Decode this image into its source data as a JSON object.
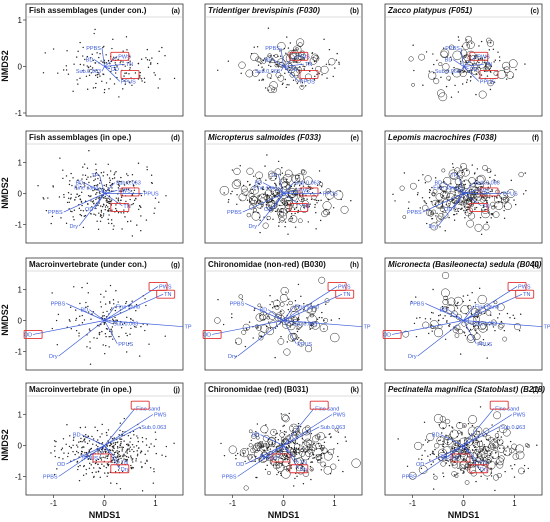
{
  "figure": {
    "axis_labels": {
      "x": "NMDS1",
      "y": "NMDS2"
    },
    "vector_color": "#3b5bdb",
    "highlight_color": "#e03131",
    "point_color": "#222222"
  },
  "chart_data": [
    {
      "id": "a",
      "type": "scatter",
      "title": "Fish assemblages (under con.)",
      "italic": false,
      "letter": "(a)",
      "xlim": [
        -1.5,
        1.5
      ],
      "ylim": [
        -1.0,
        1.0
      ],
      "xticks": [],
      "yticks": [
        -1,
        0,
        1
      ],
      "xlabel": "",
      "ylabel": "NMDS2",
      "circles": false,
      "seed": 11,
      "n_points": 160,
      "spread": [
        0.75,
        0.45
      ],
      "center": [
        0.1,
        0.0
      ],
      "vectors": [
        {
          "label": "PPBS",
          "x": -0.05,
          "y": 0.4
        },
        {
          "label": "BD",
          "x": -0.2,
          "y": 0.15
        },
        {
          "label": "PWS",
          "x": 0.25,
          "y": 0.22
        },
        {
          "label": "Sub.0.063",
          "x": -0.05,
          "y": -0.1
        },
        {
          "label": "OD",
          "x": 0.1,
          "y": -0.05
        },
        {
          "label": "TN",
          "x": 0.4,
          "y": 0.05
        },
        {
          "label": "PPUS",
          "x": 0.3,
          "y": -0.32
        }
      ],
      "boxes": [
        {
          "x": 0.3,
          "y": 0.22
        },
        {
          "x": 0.5,
          "y": -0.17
        }
      ]
    },
    {
      "id": "b",
      "type": "scatter",
      "title": "Tridentiger brevispinis (F030)",
      "italic": true,
      "letter": "(b)",
      "xlim": [
        -1.5,
        1.5
      ],
      "ylim": [
        -1.0,
        1.0
      ],
      "xticks": [],
      "yticks": [],
      "xlabel": "",
      "ylabel": "",
      "circles": true,
      "seed": 12,
      "n_points": 160,
      "spread": [
        0.75,
        0.45
      ],
      "center": [
        0.1,
        0.0
      ],
      "vectors": [
        {
          "label": "PPBS",
          "x": -0.05,
          "y": 0.4
        },
        {
          "label": "BD",
          "x": -0.2,
          "y": 0.15
        },
        {
          "label": "PWS",
          "x": 0.25,
          "y": 0.22
        },
        {
          "label": "Sub.0.063",
          "x": -0.05,
          "y": -0.1
        },
        {
          "label": "OD",
          "x": 0.1,
          "y": -0.05
        },
        {
          "label": "TN",
          "x": 0.4,
          "y": 0.05
        },
        {
          "label": "PPUS",
          "x": 0.3,
          "y": -0.32
        }
      ],
      "boxes": [
        {
          "x": 0.3,
          "y": 0.22
        },
        {
          "x": 0.5,
          "y": -0.17
        }
      ]
    },
    {
      "id": "c",
      "type": "scatter",
      "title": "Zacco platypus (F051)",
      "italic": true,
      "letter": "(c)",
      "xlim": [
        -1.5,
        1.5
      ],
      "ylim": [
        -1.0,
        1.0
      ],
      "xticks": [],
      "yticks": [],
      "xlabel": "",
      "ylabel": "",
      "circles": true,
      "seed": 13,
      "n_points": 160,
      "spread": [
        0.75,
        0.45
      ],
      "center": [
        0.1,
        0.0
      ],
      "vectors": [
        {
          "label": "PPBS",
          "x": -0.05,
          "y": 0.4
        },
        {
          "label": "BD",
          "x": -0.2,
          "y": 0.15
        },
        {
          "label": "PWS",
          "x": 0.25,
          "y": 0.22
        },
        {
          "label": "Sub.0.063",
          "x": -0.05,
          "y": -0.1
        },
        {
          "label": "OD",
          "x": 0.1,
          "y": -0.05
        },
        {
          "label": "TN",
          "x": 0.4,
          "y": 0.05
        },
        {
          "label": "PPUS",
          "x": 0.3,
          "y": -0.32
        }
      ],
      "boxes": [
        {
          "x": 0.3,
          "y": 0.22
        },
        {
          "x": 0.5,
          "y": -0.17
        }
      ]
    },
    {
      "id": "d",
      "type": "scatter",
      "title": "Fish assemblages (in ope.)",
      "italic": false,
      "letter": "(d)",
      "xlim": [
        -1.5,
        1.5
      ],
      "ylim": [
        -1.5,
        1.5
      ],
      "xticks": [],
      "yticks": [
        -1,
        0,
        1
      ],
      "xlabel": "",
      "ylabel": "NMDS2",
      "circles": false,
      "seed": 21,
      "n_points": 320,
      "spread": [
        0.8,
        0.75
      ],
      "center": [
        0.0,
        -0.1
      ],
      "vectors": [
        {
          "label": "PPBS",
          "x": -0.8,
          "y": -0.6
        },
        {
          "label": "Dry",
          "x": -0.5,
          "y": -1.05
        },
        {
          "label": "OD",
          "x": -0.2,
          "y": -0.5
        },
        {
          "label": "TP",
          "x": -0.1,
          "y": 0.6
        },
        {
          "label": "BD",
          "x": -0.4,
          "y": 0.35
        },
        {
          "label": "Fine sand",
          "x": -0.1,
          "y": 0.2
        },
        {
          "label": "Sub.0.063",
          "x": 0.2,
          "y": 0.35
        },
        {
          "label": "PWS",
          "x": 0.25,
          "y": 0.1
        },
        {
          "label": "PPUS",
          "x": 0.75,
          "y": 0.0
        },
        {
          "label": "TN",
          "x": 0.35,
          "y": -0.4
        }
      ],
      "boxes": [
        {
          "x": 0.5,
          "y": 0.05
        },
        {
          "x": 0.3,
          "y": -0.45
        }
      ]
    },
    {
      "id": "e",
      "type": "scatter",
      "title": "Micropterus salmoides (F033)",
      "italic": true,
      "letter": "(e)",
      "xlim": [
        -1.5,
        1.5
      ],
      "ylim": [
        -1.5,
        1.5
      ],
      "xticks": [],
      "yticks": [],
      "xlabel": "",
      "ylabel": "",
      "circles": true,
      "seed": 22,
      "n_points": 320,
      "spread": [
        0.8,
        0.75
      ],
      "center": [
        0.0,
        -0.1
      ],
      "vectors": [
        {
          "label": "PPBS",
          "x": -0.8,
          "y": -0.6
        },
        {
          "label": "Dry",
          "x": -0.5,
          "y": -1.05
        },
        {
          "label": "OD",
          "x": -0.2,
          "y": -0.5
        },
        {
          "label": "TP",
          "x": -0.1,
          "y": 0.6
        },
        {
          "label": "BD",
          "x": -0.4,
          "y": 0.35
        },
        {
          "label": "Fine sand",
          "x": -0.1,
          "y": 0.2
        },
        {
          "label": "Sub.0.063",
          "x": 0.2,
          "y": 0.35
        },
        {
          "label": "PWS",
          "x": 0.25,
          "y": 0.1
        },
        {
          "label": "PPUS",
          "x": 0.75,
          "y": 0.0
        },
        {
          "label": "TN",
          "x": 0.35,
          "y": -0.4
        }
      ],
      "boxes": [
        {
          "x": 0.5,
          "y": 0.05
        },
        {
          "x": 0.3,
          "y": -0.45
        }
      ]
    },
    {
      "id": "f",
      "type": "scatter",
      "title": "Lepomis macrochires (F038)",
      "italic": true,
      "letter": "(f)",
      "xlim": [
        -1.5,
        1.5
      ],
      "ylim": [
        -1.5,
        1.5
      ],
      "xticks": [],
      "yticks": [],
      "xlabel": "",
      "ylabel": "",
      "circles": true,
      "seed": 23,
      "n_points": 320,
      "spread": [
        0.8,
        0.75
      ],
      "center": [
        0.0,
        -0.1
      ],
      "vectors": [
        {
          "label": "PPBS",
          "x": -0.8,
          "y": -0.6
        },
        {
          "label": "Dry",
          "x": -0.5,
          "y": -1.05
        },
        {
          "label": "OD",
          "x": -0.2,
          "y": -0.5
        },
        {
          "label": "TP",
          "x": -0.1,
          "y": 0.6
        },
        {
          "label": "BD",
          "x": -0.4,
          "y": 0.35
        },
        {
          "label": "Fine sand",
          "x": -0.1,
          "y": 0.2
        },
        {
          "label": "Sub.0.063",
          "x": 0.2,
          "y": 0.35
        },
        {
          "label": "PWS",
          "x": 0.25,
          "y": 0.1
        },
        {
          "label": "PPUS",
          "x": 0.75,
          "y": 0.0
        },
        {
          "label": "TN",
          "x": 0.35,
          "y": -0.4
        }
      ],
      "boxes": [
        {
          "x": 0.5,
          "y": 0.05
        },
        {
          "x": 0.3,
          "y": -0.45
        }
      ]
    },
    {
      "id": "g",
      "type": "scatter",
      "title": "Macroinvertebrate (under con.)",
      "italic": false,
      "letter": "(g)",
      "xlim": [
        -1.5,
        1.5
      ],
      "ylim": [
        -1.5,
        1.5
      ],
      "xticks": [],
      "yticks": [
        -1,
        0,
        1
      ],
      "xlabel": "",
      "ylabel": "NMDS2",
      "circles": false,
      "seed": 31,
      "n_points": 150,
      "spread": [
        0.8,
        0.75
      ],
      "center": [
        0.0,
        0.0
      ],
      "vectors": [
        {
          "label": "PPBS",
          "x": -0.75,
          "y": 0.55
        },
        {
          "label": "BD",
          "x": -0.3,
          "y": 0.35
        },
        {
          "label": "Fine sand",
          "x": 0.2,
          "y": 0.45
        },
        {
          "label": "Sub.0.063",
          "x": 0.15,
          "y": -0.1
        },
        {
          "label": "PPUS",
          "x": 0.25,
          "y": -0.75
        },
        {
          "label": "Dry",
          "x": -0.9,
          "y": -1.15
        },
        {
          "label": "OD",
          "x": -1.4,
          "y": -0.45
        },
        {
          "label": "PWS",
          "x": 1.05,
          "y": 1.1
        },
        {
          "label": "TN",
          "x": 1.15,
          "y": 0.85
        },
        {
          "label": "TP",
          "x": 1.55,
          "y": -0.2
        }
      ],
      "boxes": [
        {
          "x": 1.05,
          "y": 1.1
        },
        {
          "x": 1.2,
          "y": 0.85
        },
        {
          "x": -1.4,
          "y": -0.45
        }
      ]
    },
    {
      "id": "h",
      "type": "scatter",
      "title": "Chironomidae (non-red) (B030)",
      "italic": false,
      "letter": "(h)",
      "xlim": [
        -1.5,
        1.5
      ],
      "ylim": [
        -1.5,
        1.5
      ],
      "xticks": [],
      "yticks": [],
      "xlabel": "",
      "ylabel": "",
      "circles": true,
      "seed": 32,
      "n_points": 150,
      "spread": [
        0.8,
        0.75
      ],
      "center": [
        0.0,
        0.0
      ],
      "vectors": [
        {
          "label": "PPBS",
          "x": -0.75,
          "y": 0.55
        },
        {
          "label": "BD",
          "x": -0.3,
          "y": 0.35
        },
        {
          "label": "Fine sand",
          "x": 0.2,
          "y": 0.45
        },
        {
          "label": "Sub.0.063",
          "x": 0.15,
          "y": -0.1
        },
        {
          "label": "PPUS",
          "x": 0.25,
          "y": -0.75
        },
        {
          "label": "Dry",
          "x": -0.9,
          "y": -1.15
        },
        {
          "label": "OD",
          "x": -1.4,
          "y": -0.45
        },
        {
          "label": "PWS",
          "x": 1.05,
          "y": 1.1
        },
        {
          "label": "TN",
          "x": 1.15,
          "y": 0.85
        },
        {
          "label": "TP",
          "x": 1.55,
          "y": -0.2
        }
      ],
      "boxes": [
        {
          "x": 1.05,
          "y": 1.1
        },
        {
          "x": 1.2,
          "y": 0.85
        },
        {
          "x": -1.4,
          "y": -0.45
        }
      ]
    },
    {
      "id": "i",
      "type": "scatter",
      "title": "Micronecta (Basileonecta) sedula (B040)",
      "italic": true,
      "letter": "(i)",
      "xlim": [
        -1.5,
        1.5
      ],
      "ylim": [
        -1.5,
        1.5
      ],
      "xticks": [],
      "yticks": [],
      "xlabel": "",
      "ylabel": "",
      "circles": true,
      "seed": 33,
      "n_points": 150,
      "spread": [
        0.8,
        0.75
      ],
      "center": [
        0.0,
        0.0
      ],
      "vectors": [
        {
          "label": "PPBS",
          "x": -0.75,
          "y": 0.55
        },
        {
          "label": "BD",
          "x": -0.3,
          "y": 0.35
        },
        {
          "label": "Fine sand",
          "x": 0.2,
          "y": 0.45
        },
        {
          "label": "Sub.0.063",
          "x": 0.15,
          "y": -0.1
        },
        {
          "label": "PPUS",
          "x": 0.25,
          "y": -0.75
        },
        {
          "label": "Dry",
          "x": -0.9,
          "y": -1.15
        },
        {
          "label": "OD",
          "x": -1.4,
          "y": -0.45
        },
        {
          "label": "PWS",
          "x": 1.05,
          "y": 1.1
        },
        {
          "label": "TN",
          "x": 1.15,
          "y": 0.85
        },
        {
          "label": "TP",
          "x": 1.55,
          "y": -0.2
        }
      ],
      "boxes": [
        {
          "x": 1.05,
          "y": 1.1
        },
        {
          "x": 1.2,
          "y": 0.85
        },
        {
          "x": -1.4,
          "y": -0.45
        }
      ]
    },
    {
      "id": "j",
      "type": "scatter",
      "title": "Macroinvertebrate (in ope.)",
      "italic": false,
      "letter": "(j)",
      "xlim": [
        -1.5,
        1.5
      ],
      "ylim": [
        -1.5,
        1.5
      ],
      "xticks": [
        -1,
        0,
        1
      ],
      "yticks": [
        -1,
        0,
        1
      ],
      "xlabel": "NMDS1",
      "ylabel": "NMDS2",
      "circles": false,
      "seed": 41,
      "n_points": 360,
      "spread": [
        0.8,
        0.7
      ],
      "center": [
        0.1,
        -0.2
      ],
      "vectors": [
        {
          "label": "Fine sand",
          "x": 0.6,
          "y": 1.2
        },
        {
          "label": "Sub.0.063",
          "x": 0.7,
          "y": 0.6
        },
        {
          "label": "PWS",
          "x": 0.95,
          "y": 1.0
        },
        {
          "label": "BD",
          "x": -0.45,
          "y": 0.35
        },
        {
          "label": "TP",
          "x": -0.3,
          "y": -0.35
        },
        {
          "label": "PPUS",
          "x": -0.1,
          "y": -0.4
        },
        {
          "label": "OD",
          "x": -0.75,
          "y": -0.6
        },
        {
          "label": "PPBS",
          "x": -0.9,
          "y": -1.0
        },
        {
          "label": "TN",
          "x": 0.3,
          "y": -0.55
        },
        {
          "label": "Dry",
          "x": 0.3,
          "y": -0.75
        }
      ],
      "boxes": [
        {
          "x": 0.7,
          "y": 1.3
        },
        {
          "x": -0.05,
          "y": -0.4
        },
        {
          "x": 0.3,
          "y": -0.75
        }
      ]
    },
    {
      "id": "k",
      "type": "scatter",
      "title": "Chironomidae (red) (B031)",
      "italic": false,
      "letter": "(k)",
      "xlim": [
        -1.5,
        1.5
      ],
      "ylim": [
        -1.5,
        1.5
      ],
      "xticks": [
        -1,
        0,
        1
      ],
      "yticks": [],
      "xlabel": "NMDS1",
      "ylabel": "",
      "circles": true,
      "seed": 42,
      "n_points": 360,
      "spread": [
        0.8,
        0.7
      ],
      "center": [
        0.1,
        -0.2
      ],
      "vectors": [
        {
          "label": "Fine sand",
          "x": 0.6,
          "y": 1.2
        },
        {
          "label": "Sub.0.063",
          "x": 0.7,
          "y": 0.6
        },
        {
          "label": "PWS",
          "x": 0.95,
          "y": 1.0
        },
        {
          "label": "BD",
          "x": -0.45,
          "y": 0.35
        },
        {
          "label": "TP",
          "x": -0.3,
          "y": -0.35
        },
        {
          "label": "PPUS",
          "x": -0.1,
          "y": -0.4
        },
        {
          "label": "OD",
          "x": -0.75,
          "y": -0.6
        },
        {
          "label": "PPBS",
          "x": -0.9,
          "y": -1.0
        },
        {
          "label": "TN",
          "x": 0.3,
          "y": -0.55
        },
        {
          "label": "Dry",
          "x": 0.3,
          "y": -0.75
        }
      ],
      "boxes": [
        {
          "x": 0.7,
          "y": 1.3
        },
        {
          "x": -0.05,
          "y": -0.4
        },
        {
          "x": 0.3,
          "y": -0.75
        }
      ]
    },
    {
      "id": "l",
      "type": "scatter",
      "title": "Pectinatella magnifica (Statoblast) (B218)",
      "italic": true,
      "letter": "(l)",
      "xlim": [
        -1.5,
        1.5
      ],
      "ylim": [
        -1.5,
        1.5
      ],
      "xticks": [
        -1,
        0,
        1
      ],
      "yticks": [],
      "xlabel": "NMDS1",
      "ylabel": "",
      "circles": true,
      "seed": 43,
      "n_points": 360,
      "spread": [
        0.8,
        0.7
      ],
      "center": [
        0.1,
        -0.2
      ],
      "vectors": [
        {
          "label": "Fine sand",
          "x": 0.6,
          "y": 1.2
        },
        {
          "label": "Sub.0.063",
          "x": 0.7,
          "y": 0.6
        },
        {
          "label": "PWS",
          "x": 0.95,
          "y": 1.0
        },
        {
          "label": "BD",
          "x": -0.45,
          "y": 0.35
        },
        {
          "label": "TP",
          "x": -0.3,
          "y": -0.35
        },
        {
          "label": "PPUS",
          "x": -0.1,
          "y": -0.4
        },
        {
          "label": "OD",
          "x": -0.75,
          "y": -0.6
        },
        {
          "label": "PPBS",
          "x": -0.9,
          "y": -1.0
        },
        {
          "label": "TN",
          "x": 0.3,
          "y": -0.55
        },
        {
          "label": "Dry",
          "x": 0.3,
          "y": -0.75
        }
      ],
      "boxes": [
        {
          "x": 0.7,
          "y": 1.3
        },
        {
          "x": -0.05,
          "y": -0.4
        },
        {
          "x": 0.3,
          "y": -0.75
        }
      ]
    }
  ]
}
